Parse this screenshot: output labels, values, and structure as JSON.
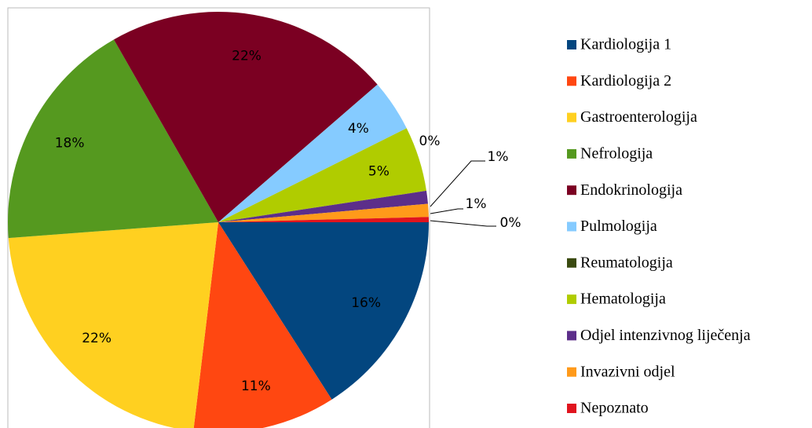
{
  "chart_data": {
    "type": "pie",
    "categories": [
      "Kardiologija 1",
      "Kardiologija 2",
      "Gastroenterologija",
      "Nefrologija",
      "Endokrinologija",
      "Pulmologija",
      "Reumatologija",
      "Hematologija",
      "Odjel intenzivnog liječenja",
      "Invazivni odjel",
      "Nepoznato"
    ],
    "values": [
      16,
      11,
      22,
      18,
      22,
      4,
      0,
      5,
      1,
      1,
      0.4
    ],
    "value_labels": [
      "16%",
      "11%",
      "22%",
      "18%",
      "22%",
      "4%",
      "0%",
      "5%",
      "1%",
      "1%",
      "0%"
    ],
    "colors": [
      "#03467f",
      "#ff4711",
      "#ffd020",
      "#55991f",
      "#7b0022",
      "#85cbff",
      "#3a4a10",
      "#b0cc00",
      "#5c2e8a",
      "#ff9a1a",
      "#e0141e"
    ],
    "legend": "right"
  }
}
